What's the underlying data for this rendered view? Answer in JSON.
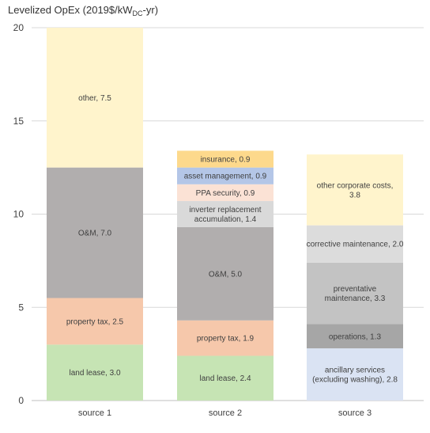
{
  "chart_data": {
    "type": "bar",
    "stacked": true,
    "title": {
      "prefix": "Levelized OpEx (2019$/kW",
      "subscript": "DC",
      "suffix": "-yr)"
    },
    "ylim": [
      0,
      20
    ],
    "yticks": [
      0,
      5,
      10,
      15,
      20
    ],
    "grid": true,
    "categories": [
      "source 1",
      "source 2",
      "source 3"
    ],
    "stacks": [
      [
        {
          "label": "land lease, 3.0",
          "value": 3.0,
          "color": "#c6e4b4"
        },
        {
          "label": "property tax, 2.5",
          "value": 2.5,
          "color": "#f6c8ab"
        },
        {
          "label": "O&M, 7.0",
          "value": 7.0,
          "color": "#b1aeae"
        },
        {
          "label": "other, 7.5",
          "value": 7.5,
          "color": "#fff4cc"
        }
      ],
      [
        {
          "label": "land lease, 2.4",
          "value": 2.4,
          "color": "#c6e4b4"
        },
        {
          "label": "property tax, 1.9",
          "value": 1.9,
          "color": "#f6c8ab"
        },
        {
          "label": "O&M, 5.0",
          "value": 5.0,
          "color": "#b1aeae"
        },
        {
          "label": "inverter replacement accumulation, 1.4",
          "lines": [
            "inverter replacement",
            "accumulation, 1.4"
          ],
          "value": 1.4,
          "color": "#d9d9d9"
        },
        {
          "label": "PPA security, 0.9",
          "value": 0.9,
          "color": "#fbe2d5"
        },
        {
          "label": "asset management, 0.9",
          "value": 0.9,
          "color": "#b4c6e7"
        },
        {
          "label": "insurance, 0.9",
          "value": 0.9,
          "color": "#fdd98c"
        }
      ],
      [
        {
          "label": "ancillary services (excluding washing), 2.8",
          "lines": [
            "ancillary services",
            "(excluding washing), 2.8"
          ],
          "value": 2.8,
          "color": "#dae3f3"
        },
        {
          "label": "operations, 1.3",
          "value": 1.3,
          "color": "#a6a6a6"
        },
        {
          "label": "preventative maintenance, 3.3",
          "lines": [
            "preventative",
            "maintenance, 3.3"
          ],
          "value": 3.3,
          "color": "#c3c3c3"
        },
        {
          "label": "corrective maintenance, 2.0",
          "value": 2.0,
          "color": "#dcdcdc"
        },
        {
          "label": "other corporate costs, 3.8",
          "lines": [
            "other corporate costs,",
            "3.8"
          ],
          "value": 3.8,
          "color": "#fff4cc"
        }
      ]
    ]
  }
}
